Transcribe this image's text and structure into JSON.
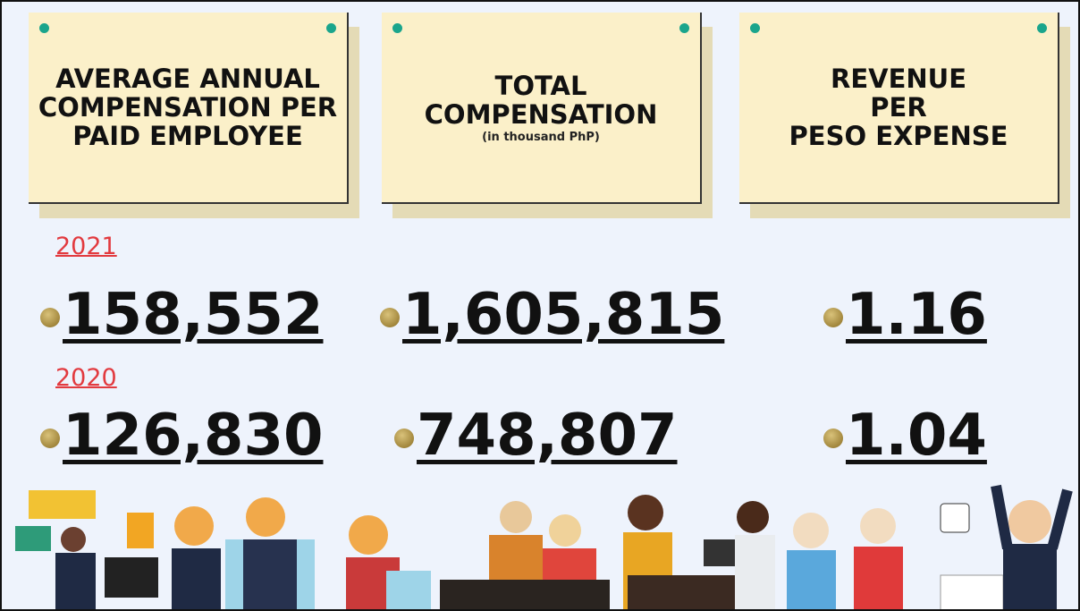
{
  "cards": [
    {
      "title_lines": [
        "AVERAGE ANNUAL",
        "COMPENSATION PER",
        "PAID EMPLOYEE"
      ]
    },
    {
      "title_lines": [
        "TOTAL",
        "COMPENSATION"
      ],
      "subtitle": "(in thousand PhP)"
    },
    {
      "title_lines": [
        "REVENUE",
        "PER",
        "PESO EXPENSE"
      ]
    }
  ],
  "years": [
    {
      "label": "2021",
      "values": [
        "158,552",
        "1,605,815",
        "1.16"
      ]
    },
    {
      "label": "2020",
      "values": [
        "126,830",
        "748,807",
        "1.04"
      ]
    }
  ]
}
